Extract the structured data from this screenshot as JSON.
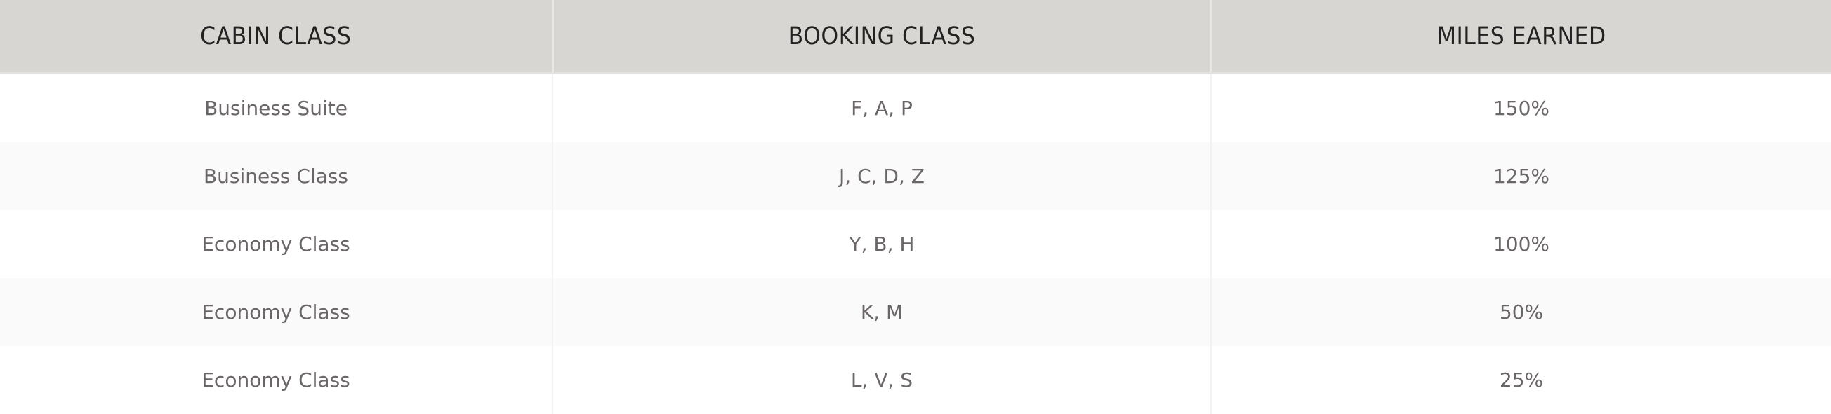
{
  "table": {
    "headers": [
      "CABIN CLASS",
      "BOOKING CLASS",
      "MILES EARNED"
    ],
    "rows": [
      [
        "Business Suite",
        "F, A, P",
        "150%"
      ],
      [
        "Business Class",
        "J, C, D, Z",
        "125%"
      ],
      [
        "Economy Class",
        "Y, B, H",
        "100%"
      ],
      [
        "Economy Class",
        "K, M",
        "50%"
      ],
      [
        "Economy Class",
        "L, V, S",
        "25%"
      ]
    ]
  },
  "colors": {
    "header_bg": "#d7d6d2",
    "header_text": "#222222",
    "cell_text": "#6b6669",
    "alt_row_bg": "#fafafa"
  }
}
